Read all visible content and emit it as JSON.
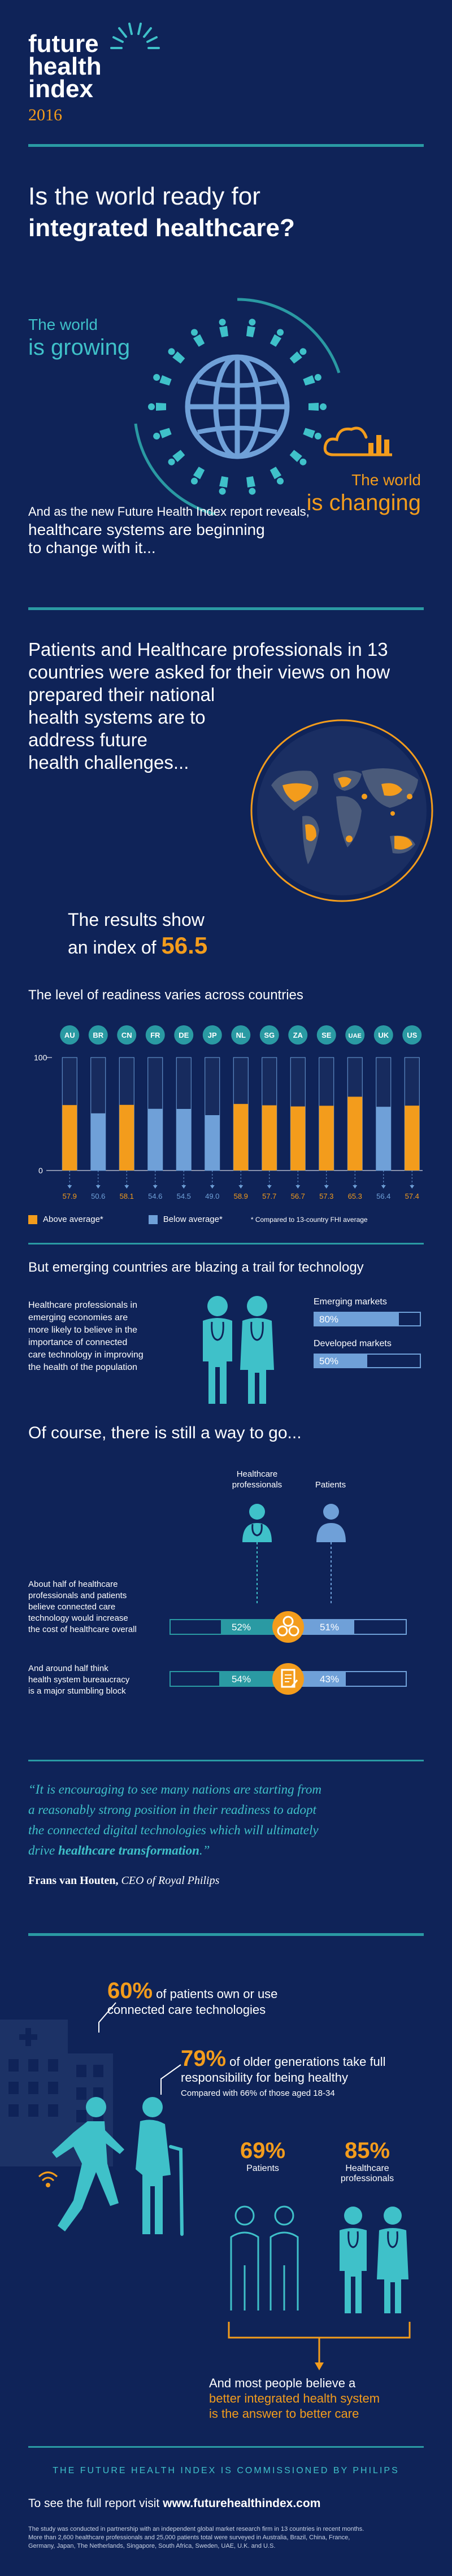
{
  "logo": {
    "line1": "future",
    "line2": "health",
    "line3": "index",
    "year": "2016"
  },
  "headline": {
    "line1": "Is the world ready for",
    "line2": "integrated healthcare?"
  },
  "world": {
    "growing_a": "The world",
    "growing_b": "is growing",
    "changing_a": "The world",
    "changing_b": "is changing"
  },
  "report": {
    "line1": "And as the new Future Health Index report reveals,",
    "line2": "healthcare systems are beginning",
    "line3": "to change with it..."
  },
  "survey": {
    "lines": [
      "Patients and Healthcare professionals in 13",
      "countries were asked for their views on how",
      "prepared their national",
      "health systems are to",
      "address future",
      "health challenges..."
    ],
    "results_a": "The results show",
    "results_b": "an index of",
    "index": "56.5"
  },
  "readiness": {
    "title": "The level of readiness varies across countries",
    "y_top": "100",
    "y_zero": "0",
    "legend_above": "Above average*",
    "legend_below": "Below average*",
    "footnote": "* Compared to 13-country FHI average",
    "colors": {
      "above": "#f39c1c",
      "below": "#6fa0d8",
      "track": "#172b5e"
    }
  },
  "chart_data": {
    "type": "bar",
    "title": "The level of readiness varies across countries",
    "categories": [
      "AU",
      "BR",
      "CN",
      "FR",
      "DE",
      "JP",
      "NL",
      "SG",
      "ZA",
      "SE",
      "UAE",
      "UK",
      "US"
    ],
    "values": [
      57.9,
      50.6,
      58.1,
      54.6,
      54.5,
      49.0,
      58.9,
      57.7,
      56.7,
      57.3,
      65.3,
      56.4,
      57.4
    ],
    "labels": [
      "57.9",
      "50.6",
      "58.1",
      "54.6",
      "54.5",
      "49.0",
      "58.9",
      "57.7",
      "56.7",
      "57.3",
      "65.3",
      "56.4",
      "57.4"
    ],
    "status": [
      "above",
      "below",
      "above",
      "below",
      "below",
      "below",
      "above",
      "above",
      "above",
      "above",
      "above",
      "below",
      "above"
    ],
    "ylim": [
      0,
      100
    ],
    "average": 56.5
  },
  "emerging": {
    "title": "But emerging countries are blazing a trail for technology",
    "text": [
      "Healthcare professionals in",
      "emerging economies are",
      "more likely to believe in the",
      "importance of connected",
      "care technology in improving",
      "the health of the population"
    ],
    "em_label": "Emerging markets",
    "em_value": "80%",
    "em_pct": 80,
    "dev_label": "Developed markets",
    "dev_value": "50%",
    "dev_pct": 50
  },
  "way": {
    "title": "Of course, there is still a way to go...",
    "hp_label_a": "Healthcare",
    "hp_label_b": "professionals",
    "pat_label": "Patients",
    "q1": [
      "About half of healthcare",
      "professionals and patients",
      "believe connected care",
      "technology would increase",
      "the cost of healthcare overall"
    ],
    "q1_hp": "52%",
    "q1_hp_pct": 52,
    "q1_pat": "51%",
    "q1_pat_pct": 51,
    "q2": [
      "And around half think",
      "health system bureaucracy",
      "is a major stumbling block"
    ],
    "q2_hp": "54%",
    "q2_hp_pct": 54,
    "q2_pat": "43%",
    "q2_pat_pct": 43
  },
  "quote": {
    "lines": [
      "“It is encouraging to see many nations are starting from",
      "a reasonably strong position in their readiness to adopt",
      "the connected digital technologies which will ultimately"
    ],
    "last_a": "drive ",
    "last_b": "healthcare transformation",
    "last_c": ".”",
    "author": "Frans van Houten,",
    "role": " CEO of Royal Philips"
  },
  "stats": {
    "s1_big": "60%",
    "s1_a": " of patients own or use",
    "s1_b": "connected care technologies",
    "s2_big": "79%",
    "s2_a": " of older generations take full",
    "s2_b": "responsibility for being healthy",
    "s2_c": "Compared with 66% of those aged 18-34",
    "s3_big": "69%",
    "s3_label": "Patients",
    "s4_big": "85%",
    "s4_label_a": "Healthcare",
    "s4_label_b": "professionals",
    "s5_a": "And most people believe a",
    "s5_b": "better integrated health system",
    "s5_c": "is the answer to better care"
  },
  "footer": {
    "commission": "THE FUTURE HEALTH INDEX IS COMMISSIONED BY PHILIPS",
    "visit_a": "To see the full report visit ",
    "visit_b": "www.futurehealthindex.com",
    "note": [
      "The study was conducted in partnership with an independent global market research firm in 13 countries in recent months.",
      "More than 2,600 healthcare professionals and 25,000 patients total were surveyed in Australia, Brazil, China, France,",
      "Germany, Japan, The Netherlands, Singapore, South Africa, Sweden, UAE, U.K. and U.S."
    ]
  }
}
